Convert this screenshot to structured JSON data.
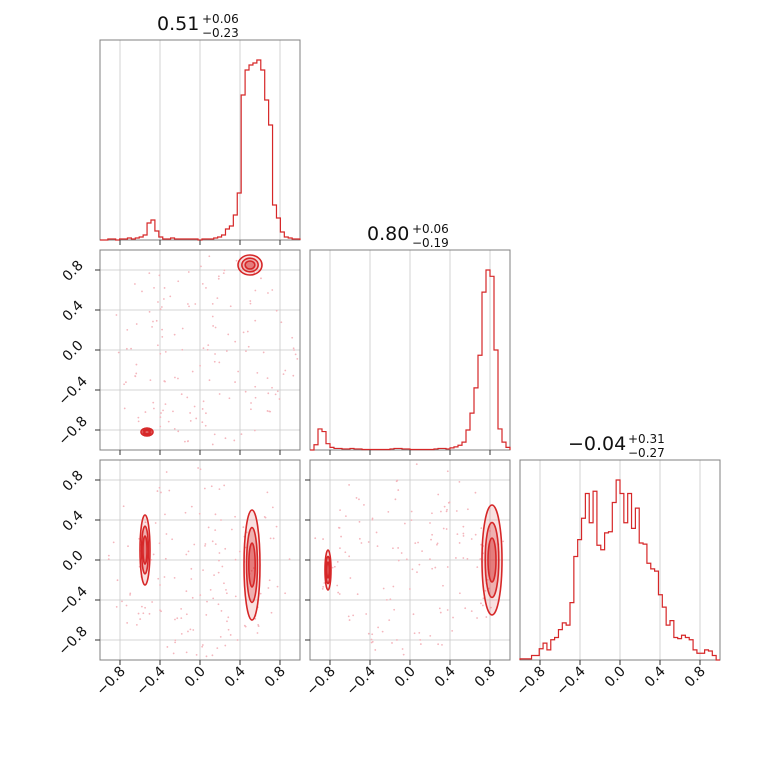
{
  "chart_data": {
    "type": "corner",
    "color": "#d62728",
    "range": [
      -1,
      1
    ],
    "ticks": [
      -0.8,
      -0.4,
      0.0,
      0.4,
      0.8
    ],
    "tick_labels": [
      "−0.8",
      "−0.4",
      "0.0",
      "0.4",
      "0.8"
    ],
    "grid": true,
    "parameters": [
      {
        "median": "0.51",
        "plus": "+0.06",
        "minus": "−0.23"
      },
      {
        "median": "0.80",
        "plus": "+0.06",
        "minus": "−0.19"
      },
      {
        "median": "−0.04",
        "plus": "+0.31",
        "minus": "−0.27"
      }
    ],
    "histograms": [
      {
        "bin_edges_range": [
          -1,
          1
        ],
        "counts": [
          0,
          0,
          1,
          1,
          0,
          1,
          1,
          2,
          1,
          2,
          3,
          5,
          17,
          20,
          9,
          3,
          1,
          1,
          2,
          1,
          1,
          1,
          1,
          1,
          1,
          0,
          1,
          1,
          1,
          2,
          3,
          5,
          11,
          14,
          25,
          47,
          145,
          170,
          175,
          177,
          180,
          170,
          140,
          115,
          35,
          22,
          8,
          3,
          2,
          1,
          1
        ]
      },
      {
        "bin_edges_range": [
          -1,
          1
        ],
        "counts": [
          0,
          10,
          40,
          35,
          12,
          5,
          3,
          3,
          2,
          2,
          3,
          2,
          2,
          1,
          1,
          1,
          1,
          1,
          1,
          1,
          2,
          3,
          3,
          2,
          2,
          1,
          1,
          1,
          1,
          1,
          1,
          2,
          3,
          3,
          2,
          4,
          6,
          9,
          15,
          38,
          70,
          118,
          180,
          300,
          342,
          330,
          190,
          40,
          15,
          5
        ]
      },
      {
        "bin_edges_range": [
          -1,
          1
        ],
        "counts": [
          1,
          1,
          1,
          4,
          4,
          10,
          15,
          9,
          18,
          20,
          27,
          33,
          31,
          51,
          92,
          107,
          126,
          148,
          122,
          150,
          102,
          98,
          113,
          114,
          140,
          160,
          148,
          122,
          148,
          117,
          135,
          104,
          103,
          86,
          81,
          79,
          58,
          47,
          31,
          35,
          20,
          19,
          22,
          20,
          18,
          9,
          6,
          6,
          9,
          8,
          4,
          0
        ]
      }
    ],
    "contour_centers": {
      "p1_p2": [
        [
          0.5,
          0.85,
          0.12,
          0.1
        ],
        [
          -0.53,
          -0.82,
          0.06,
          0.04
        ]
      ],
      "p1_p3": [
        [
          0.52,
          -0.05,
          0.08,
          0.55
        ],
        [
          -0.55,
          0.1,
          0.05,
          0.35
        ]
      ],
      "p2_p3": [
        [
          0.82,
          0.0,
          0.1,
          0.55
        ],
        [
          -0.82,
          -0.1,
          0.03,
          0.2
        ]
      ]
    }
  }
}
